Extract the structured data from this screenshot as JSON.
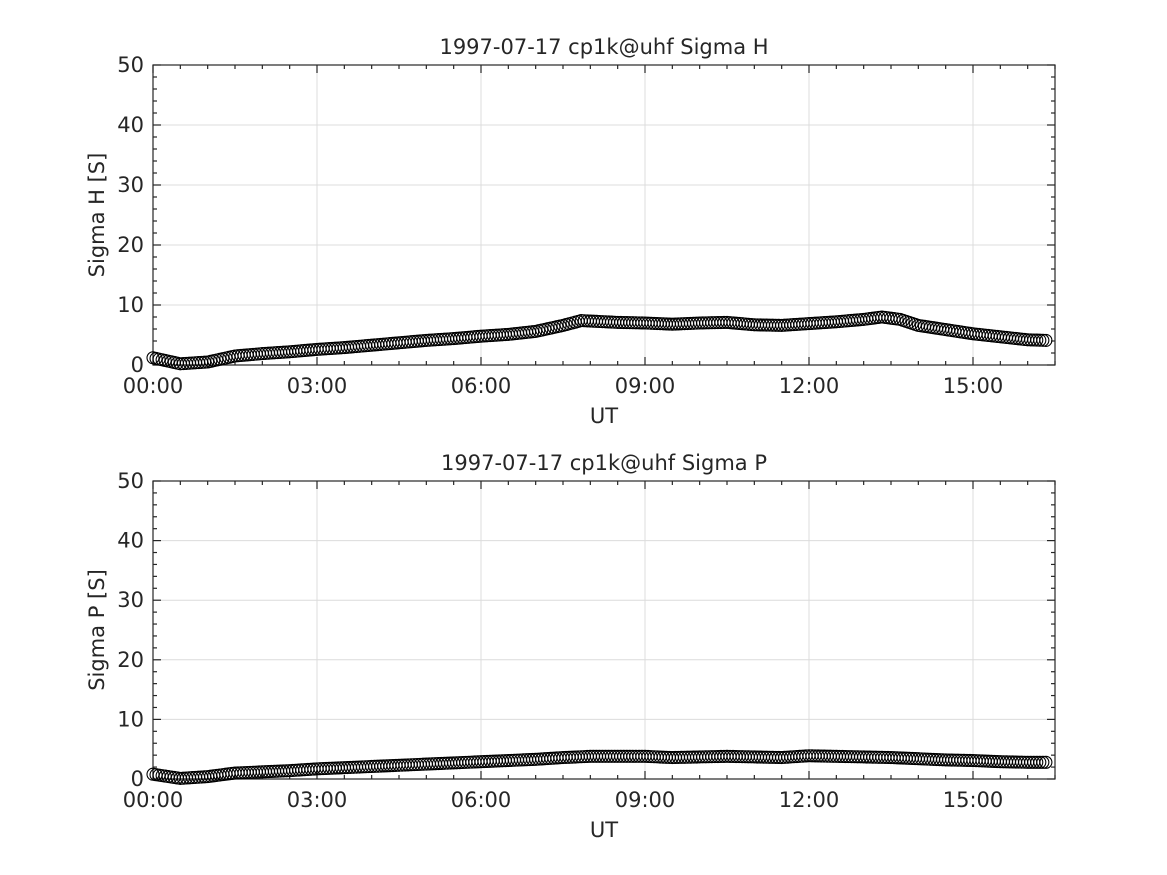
{
  "chart_data": [
    {
      "type": "scatter",
      "title": "1997-07-17  cp1k@uhf Sigma H",
      "xlabel": "UT",
      "ylabel": "Sigma H [S]",
      "xlim": [
        "00:00",
        "16:30"
      ],
      "ylim": [
        0,
        50
      ],
      "grid": true,
      "marker": "open-circle",
      "colors": {
        "marker": "#000000",
        "grid": "#dcdcdc",
        "axis": "#262626"
      },
      "x_ticks": [
        "00:00",
        "03:00",
        "06:00",
        "09:00",
        "12:00",
        "15:00"
      ],
      "y_ticks": [
        "0",
        "10",
        "20",
        "30",
        "40",
        "50"
      ],
      "series": [
        {
          "x": [
            "00:00",
            "00:30",
            "01:00",
            "01:30",
            "02:00",
            "02:30",
            "03:00",
            "03:30",
            "04:00",
            "04:30",
            "05:00",
            "05:30",
            "06:00",
            "06:30",
            "07:00",
            "07:30",
            "07:50",
            "08:30",
            "09:00",
            "09:30",
            "10:00",
            "10:30",
            "11:00",
            "11:30",
            "12:00",
            "12:30",
            "13:00",
            "13:20",
            "13:40",
            "14:00",
            "14:30",
            "15:00",
            "15:30",
            "16:00",
            "16:20"
          ],
          "y": [
            1.2,
            0.2,
            0.5,
            1.5,
            1.9,
            2.2,
            2.6,
            2.9,
            3.3,
            3.7,
            4.1,
            4.4,
            4.8,
            5.1,
            5.6,
            6.6,
            7.4,
            7.1,
            7.0,
            6.8,
            7.0,
            7.1,
            6.7,
            6.6,
            6.9,
            7.2,
            7.6,
            8.0,
            7.6,
            6.6,
            5.9,
            5.2,
            4.7,
            4.2,
            4.1
          ]
        }
      ]
    },
    {
      "type": "scatter",
      "title": "1997-07-17  cp1k@uhf Sigma P",
      "xlabel": "UT",
      "ylabel": "Sigma P [S]",
      "xlim": [
        "00:00",
        "16:30"
      ],
      "ylim": [
        0,
        50
      ],
      "grid": true,
      "marker": "open-circle",
      "colors": {
        "marker": "#000000",
        "grid": "#dcdcdc",
        "axis": "#262626"
      },
      "x_ticks": [
        "00:00",
        "03:00",
        "06:00",
        "09:00",
        "12:00",
        "15:00"
      ],
      "y_ticks": [
        "0",
        "10",
        "20",
        "30",
        "40",
        "50"
      ],
      "series": [
        {
          "x": [
            "00:00",
            "00:30",
            "01:00",
            "01:30",
            "02:00",
            "02:30",
            "03:00",
            "03:30",
            "04:00",
            "04:30",
            "05:00",
            "05:30",
            "06:00",
            "06:30",
            "07:00",
            "07:30",
            "08:00",
            "08:30",
            "09:00",
            "09:30",
            "10:00",
            "10:30",
            "11:00",
            "11:30",
            "12:00",
            "12:30",
            "13:00",
            "13:30",
            "14:00",
            "14:30",
            "15:00",
            "15:30",
            "16:00",
            "16:20"
          ],
          "y": [
            0.8,
            0.1,
            0.4,
            1.0,
            1.2,
            1.4,
            1.7,
            1.9,
            2.1,
            2.3,
            2.5,
            2.7,
            2.9,
            3.1,
            3.3,
            3.6,
            3.8,
            3.8,
            3.8,
            3.6,
            3.7,
            3.8,
            3.7,
            3.6,
            3.9,
            3.8,
            3.7,
            3.6,
            3.4,
            3.2,
            3.1,
            2.9,
            2.8,
            2.8
          ]
        }
      ]
    }
  ]
}
